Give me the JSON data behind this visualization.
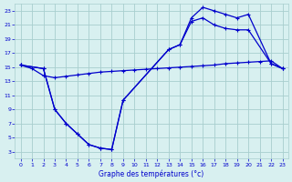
{
  "background_color": "#d8f0f0",
  "grid_color": "#a8cece",
  "line_color": "#0000cc",
  "xlabel": "Graphe des températures (°c)",
  "xlim": [
    -0.5,
    23.5
  ],
  "ylim": [
    2,
    24
  ],
  "yticks": [
    3,
    5,
    7,
    9,
    11,
    13,
    15,
    17,
    19,
    21,
    23
  ],
  "xticks": [
    0,
    1,
    2,
    3,
    4,
    5,
    6,
    7,
    8,
    9,
    10,
    11,
    12,
    13,
    14,
    15,
    16,
    17,
    18,
    19,
    20,
    21,
    22,
    23
  ],
  "line1_x": [
    0,
    1,
    2,
    3,
    4,
    5,
    6,
    7,
    8,
    9,
    10,
    11,
    12,
    13,
    14,
    15,
    16,
    17,
    18,
    19,
    20,
    21,
    22,
    23
  ],
  "line1_y": [
    15.3,
    14.8,
    13.8,
    13.5,
    13.7,
    13.9,
    14.1,
    14.3,
    14.4,
    14.5,
    14.6,
    14.7,
    14.8,
    14.9,
    15.0,
    15.1,
    15.2,
    15.3,
    15.5,
    15.6,
    15.7,
    15.8,
    15.9,
    14.8
  ],
  "line2_x": [
    0,
    2,
    3,
    4,
    5,
    6,
    7,
    8,
    9,
    13,
    14,
    15,
    16,
    17,
    18,
    19,
    20,
    22,
    23
  ],
  "line2_y": [
    15.3,
    14.8,
    9.0,
    7.0,
    5.5,
    4.0,
    3.5,
    3.3,
    10.3,
    17.5,
    18.2,
    21.5,
    22.0,
    21.0,
    20.5,
    20.3,
    20.3,
    15.5,
    14.8
  ],
  "line3_x": [
    0,
    2,
    3,
    4,
    5,
    6,
    7,
    8,
    9,
    13,
    14,
    15,
    16,
    17,
    18,
    19,
    20,
    22,
    23
  ],
  "line3_y": [
    15.3,
    14.8,
    9.0,
    7.0,
    5.5,
    4.0,
    3.5,
    3.3,
    10.3,
    17.5,
    18.2,
    22.0,
    23.5,
    23.0,
    22.5,
    22.0,
    22.5,
    15.5,
    14.8
  ]
}
